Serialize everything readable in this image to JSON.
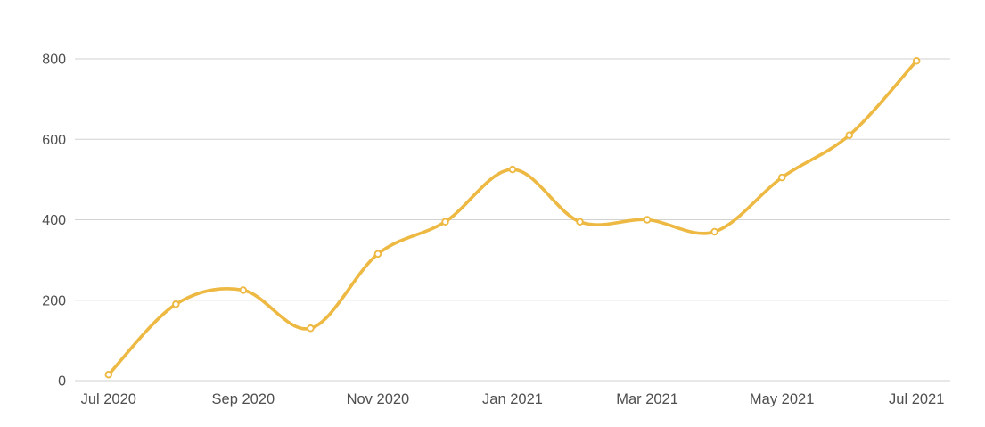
{
  "chart_data": {
    "type": "line",
    "title": "",
    "x": [
      "Jul 2020",
      "Aug 2020",
      "Sep 2020",
      "Oct 2020",
      "Nov 2020",
      "Dec 2020",
      "Jan 2021",
      "Feb 2021",
      "Mar 2021",
      "Apr 2021",
      "May 2021",
      "Jun 2021",
      "Jul 2021"
    ],
    "values": [
      15,
      190,
      225,
      130,
      315,
      395,
      525,
      395,
      400,
      370,
      505,
      610,
      795
    ],
    "x_tick_labels": [
      "Jul 2020",
      "Sep 2020",
      "Nov 2020",
      "Jan 2021",
      "Mar 2021",
      "May 2021",
      "Jul 2021"
    ],
    "y_ticks": [
      0,
      200,
      400,
      600,
      800
    ],
    "ylim": [
      0,
      800
    ],
    "xlabel": "",
    "ylabel": "",
    "grid": "horizontal",
    "legend": "none",
    "line_style": "smooth",
    "marker_style": "hollow-circle",
    "line_color": "#EDB942"
  },
  "colors": {
    "line": "#EDB942",
    "marker_fill": "#FFFFFF",
    "gridline": "#D2D2D2",
    "axis_label": "#4F4F4F",
    "background": "#FFFFFF"
  }
}
